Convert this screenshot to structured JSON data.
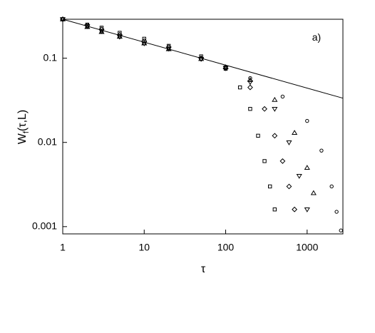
{
  "chart_data": {
    "type": "scatter",
    "xlog": true,
    "ylog": true,
    "x_label": "τ",
    "y_label": [
      "W",
      "f",
      "(τ,L)"
    ],
    "annotation": "a)",
    "xlim": [
      1,
      2750
    ],
    "ylim": [
      0.00082,
      0.29
    ],
    "xticks": [
      1,
      10,
      100,
      1000
    ],
    "yticks": [
      0.001,
      0.01,
      0.1
    ],
    "series": [
      {
        "marker": "square",
        "color": "#000000",
        "x": [
          1,
          2,
          3,
          5,
          10,
          20,
          50,
          100,
          150,
          200,
          250,
          300,
          350,
          400
        ],
        "values": [
          0.29,
          0.25,
          0.23,
          0.2,
          0.17,
          0.14,
          0.105,
          0.075,
          0.045,
          0.025,
          0.012,
          0.006,
          0.003,
          0.0016
        ]
      },
      {
        "marker": "diamond",
        "color": "#000000",
        "x": [
          1,
          2,
          3,
          5,
          10,
          20,
          50,
          100,
          200,
          300,
          400,
          500,
          600,
          700
        ],
        "values": [
          0.29,
          0.245,
          0.22,
          0.19,
          0.16,
          0.135,
          0.1,
          0.076,
          0.045,
          0.025,
          0.012,
          0.006,
          0.003,
          0.0016
        ]
      },
      {
        "marker": "triangle-down",
        "color": "#000000",
        "x": [
          1,
          2,
          3,
          5,
          10,
          20,
          50,
          100,
          200,
          400,
          600,
          800,
          1000
        ],
        "values": [
          0.29,
          0.24,
          0.21,
          0.18,
          0.15,
          0.13,
          0.098,
          0.077,
          0.052,
          0.025,
          0.01,
          0.004,
          0.0016
        ]
      },
      {
        "marker": "triangle-up",
        "color": "#000000",
        "x": [
          1,
          2,
          3,
          5,
          10,
          20,
          50,
          100,
          200,
          400,
          700,
          1000,
          1200
        ],
        "values": [
          0.29,
          0.235,
          0.205,
          0.18,
          0.15,
          0.128,
          0.098,
          0.078,
          0.055,
          0.032,
          0.013,
          0.005,
          0.0025
        ]
      },
      {
        "marker": "circle",
        "color": "#000000",
        "x": [
          1,
          2,
          3,
          5,
          10,
          20,
          50,
          100,
          200,
          500,
          1000,
          1500,
          2000,
          2300,
          2600
        ],
        "values": [
          0.29,
          0.235,
          0.205,
          0.18,
          0.15,
          0.128,
          0.098,
          0.079,
          0.058,
          0.035,
          0.018,
          0.008,
          0.003,
          0.0015,
          0.0009
        ]
      },
      {
        "marker": "line",
        "color": "#000000",
        "x": [
          1,
          2750
        ],
        "values": [
          0.29,
          0.0335
        ]
      }
    ]
  }
}
